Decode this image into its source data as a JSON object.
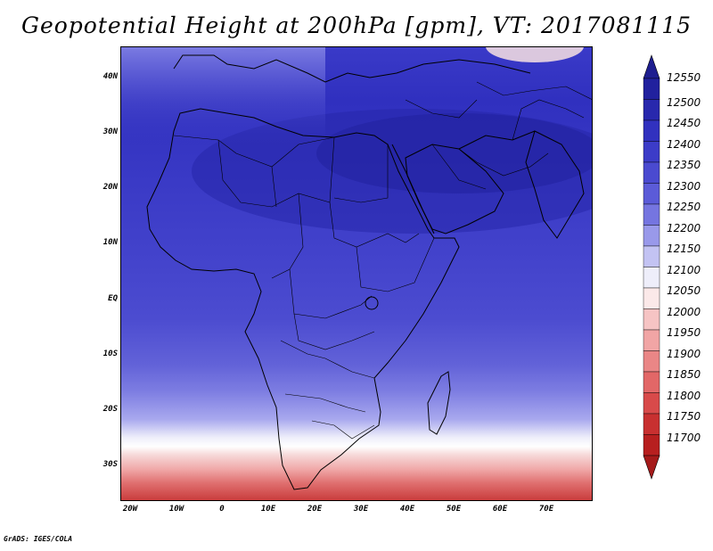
{
  "title": "Geopotential Height at 200hPa [gpm], VT: 2017081115",
  "footer": "GrADS: IGES/COLA",
  "lat_labels": [
    "40N",
    "30N",
    "20N",
    "10N",
    "EQ",
    "10S",
    "20S",
    "30S"
  ],
  "lon_labels": [
    "20W",
    "10W",
    "0",
    "10E",
    "20E",
    "30E",
    "40E",
    "50E",
    "60E",
    "70E"
  ],
  "colorbar": {
    "levels": [
      12550,
      12500,
      12450,
      12400,
      12350,
      12300,
      12250,
      12200,
      12150,
      12100,
      12050,
      12000,
      11950,
      11900,
      11850,
      11800,
      11750,
      11700
    ],
    "colors": [
      "#21219e",
      "#2828ad",
      "#3131bf",
      "#3c3cc8",
      "#4a4ad0",
      "#5b5bd8",
      "#7575e0",
      "#9999ea",
      "#c3c3f3",
      "#eeeefa",
      "#fbe9e9",
      "#f6c4c4",
      "#f1a5a5",
      "#ea8686",
      "#e26767",
      "#d84a4a",
      "#c83030",
      "#b71f1f"
    ],
    "arrow_top_color": "#1e1e90",
    "arrow_bottom_color": "#a51a1a"
  },
  "labels": {
    "lat_0": "40N",
    "lat_1": "30N",
    "lat_2": "20N",
    "lat_3": "10N",
    "lat_4": "EQ",
    "lat_5": "10S",
    "lat_6": "20S",
    "lat_7": "30S",
    "lon_0": "20W",
    "lon_1": "10W",
    "lon_2": "0",
    "lon_3": "10E",
    "lon_4": "20E",
    "lon_5": "30E",
    "lon_6": "40E",
    "lon_7": "50E",
    "lon_8": "60E",
    "lon_9": "70E",
    "cb_0": "12550",
    "cb_1": "12500",
    "cb_2": "12450",
    "cb_3": "12400",
    "cb_4": "12350",
    "cb_5": "12300",
    "cb_6": "12250",
    "cb_7": "12200",
    "cb_8": "12150",
    "cb_9": "12100",
    "cb_10": "12050",
    "cb_11": "12000",
    "cb_12": "11950",
    "cb_13": "11900",
    "cb_14": "11850",
    "cb_15": "11800",
    "cb_16": "11750",
    "cb_17": "11700"
  }
}
